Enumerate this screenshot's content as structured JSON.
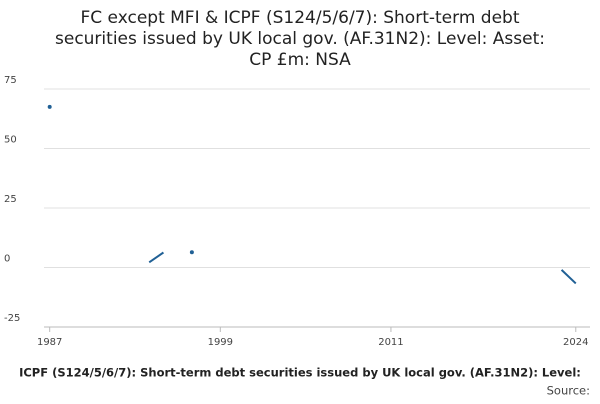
{
  "chart_data": {
    "type": "line",
    "title": [
      "FC except MFI & ICPF (S124/5/6/7): Short-term debt",
      "securities issued by UK local gov. (AF.31N2): Level: Asset:",
      "CP £m: NSA"
    ],
    "x_label": "ICPF (S124/5/6/7): Short-term debt securities issued by UK local gov. (AF.31N2): Level:",
    "source": "Source:",
    "series": [
      {
        "name": "Level",
        "color": "#206095",
        "x": [
          1987,
          1988,
          1994,
          1995,
          1996,
          1997,
          1998,
          2023,
          2024
        ],
        "values": [
          67.5,
          null,
          2.2,
          6.3,
          null,
          6.4,
          null,
          -1,
          -6.7
        ]
      }
    ],
    "xlim": [
      1986.6,
      2025
    ],
    "xticks": [
      1987,
      1999,
      2011,
      2024
    ],
    "ylim": [
      -25,
      75
    ],
    "yticks": [
      -25,
      0,
      25,
      50,
      75
    ],
    "grid": true
  }
}
